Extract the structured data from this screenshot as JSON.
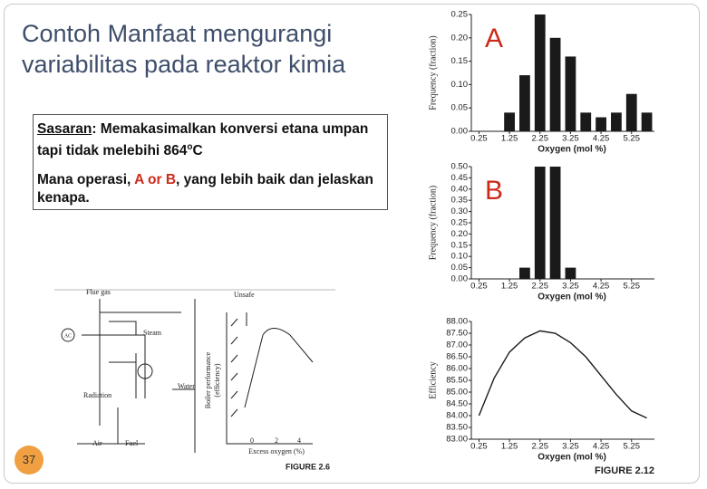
{
  "slide": {
    "title": "Contoh Manfaat mengurangi variabilitas pada reaktor kimia",
    "goal_label": "Sasaran",
    "goal_text": ": Memakasimalkan konversi etana umpan tapi tidak melebihi 864",
    "goal_degree": "o",
    "goal_unit": "C",
    "question_start": "Mana operasi, ",
    "question_options": "A or B",
    "question_end": ", yang lebih baik dan jelaskan kenapa.",
    "page_number": "37"
  },
  "figure": {
    "flue_gas": "Flue gas",
    "unsafe": "Unsafe",
    "steam": "Steam",
    "ac": "AC",
    "radiation": "Radiation",
    "water": "Water",
    "air": "Air",
    "fuel": "Fuel",
    "ylabel_1": "Boiler performance",
    "ylabel_2": "(efficiency)",
    "xlabel": "Excess oxygen (%)",
    "x_tick_labels": [
      "0",
      "2",
      "4"
    ],
    "caption": "FIGURE 2.6"
  },
  "chart_data": [
    {
      "type": "bar",
      "annotation": "A",
      "color": "#1a1a1a",
      "x": [
        1.25,
        1.75,
        2.25,
        2.75,
        3.25,
        3.75,
        4.25,
        4.75,
        5.25,
        5.75
      ],
      "values": [
        0.04,
        0.12,
        0.25,
        0.2,
        0.16,
        0.04,
        0.03,
        0.04,
        0.08,
        0.04
      ],
      "xlim": [
        0,
        6
      ],
      "xticks": [
        0.25,
        1.25,
        2.25,
        3.25,
        4.25,
        5.25
      ],
      "ylim": [
        0,
        0.25
      ],
      "yticks": [
        {
          "value": 0,
          "label": "0.00"
        },
        0.05,
        {
          "value": 0.1,
          "label": "0.10"
        },
        0.15,
        {
          "value": 0.2,
          "label": "0.20"
        },
        0.25
      ],
      "xlabel": "Oxygen (mol %)",
      "ylabel": "Frequency (fraction)"
    },
    {
      "type": "bar",
      "annotation": "B",
      "color": "#1a1a1a",
      "x": [
        1.75,
        2.25,
        2.75,
        3.25
      ],
      "values": [
        0.05,
        0.5,
        0.5,
        0.05
      ],
      "xlim": [
        0,
        6
      ],
      "xticks": [
        0.25,
        1.25,
        2.25,
        3.25,
        4.25,
        5.25
      ],
      "ylim": [
        0,
        0.5
      ],
      "yticks": [
        {
          "value": 0,
          "label": "0.00"
        },
        0.05,
        {
          "value": 0.1,
          "label": "0.10"
        },
        0.15,
        {
          "value": 0.2,
          "label": "0.20"
        },
        0.25,
        {
          "value": 0.3,
          "label": "0.30"
        },
        0.35,
        {
          "value": 0.4,
          "label": "0.40"
        },
        0.45,
        {
          "value": 0.5,
          "label": "0.50"
        }
      ],
      "xlabel": "Oxygen (mol %)",
      "ylabel": "Frequency (fraction)"
    },
    {
      "type": "line",
      "color": "#1a1a1a",
      "x": [
        0.25,
        0.75,
        1.25,
        1.75,
        2.25,
        2.75,
        3.25,
        3.75,
        4.25,
        4.75,
        5.25,
        5.75
      ],
      "values": [
        84.0,
        85.6,
        86.7,
        87.3,
        87.6,
        87.5,
        87.1,
        86.5,
        85.7,
        84.9,
        84.2,
        83.9
      ],
      "xlim": [
        0,
        6
      ],
      "xticks": [
        0.25,
        1.25,
        2.25,
        3.25,
        4.25,
        5.25
      ],
      "ylim": [
        83,
        88
      ],
      "yticks": [
        {
          "value": 83,
          "label": "83.00"
        },
        {
          "value": 83.5,
          "label": "83.50"
        },
        {
          "value": 84,
          "label": "84.00"
        },
        {
          "value": 84.5,
          "label": "84.50"
        },
        {
          "value": 85,
          "label": "85.00"
        },
        {
          "value": 85.5,
          "label": "85.50"
        },
        {
          "value": 86,
          "label": "86.00"
        },
        {
          "value": 86.5,
          "label": "86.50"
        },
        {
          "value": 87,
          "label": "87.00"
        },
        {
          "value": 87.5,
          "label": "87.50"
        },
        {
          "value": 88,
          "label": "88.00"
        }
      ],
      "xlabel": "Oxygen (mol %)",
      "ylabel": "Efficiency",
      "caption": "FIGURE 2.12"
    }
  ]
}
